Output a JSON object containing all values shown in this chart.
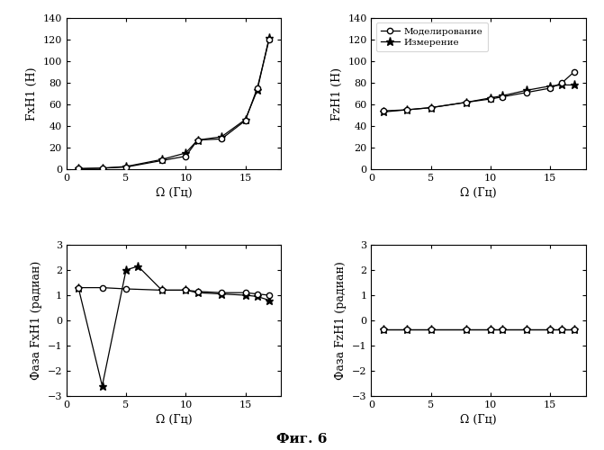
{
  "omega": [
    1,
    3,
    5,
    8,
    10,
    11,
    13,
    15,
    16,
    17
  ],
  "fxh1_sim": [
    0.5,
    1.0,
    2.0,
    8.0,
    12.0,
    27.0,
    28.0,
    45.0,
    75.0,
    120.0
  ],
  "fxh1_meas": [
    0.5,
    1.0,
    2.5,
    9.0,
    15.0,
    27.0,
    30.0,
    46.0,
    73.0,
    122.0
  ],
  "fzh1_omega": [
    1,
    3,
    5,
    8,
    10,
    11,
    13,
    15,
    16,
    17
  ],
  "fzh1_sim": [
    54,
    55,
    57,
    62,
    65,
    67,
    71,
    75,
    80,
    90
  ],
  "fzh1_meas": [
    53,
    55,
    57,
    62,
    66,
    68,
    73,
    77,
    78,
    78
  ],
  "phase_fxh1_omega_sim": [
    1,
    3,
    5,
    8,
    10,
    11,
    13,
    15,
    16,
    17
  ],
  "phase_fxh1_sim": [
    1.3,
    1.3,
    1.25,
    1.2,
    1.2,
    1.15,
    1.1,
    1.1,
    1.05,
    1.0
  ],
  "phase_fxh1_omega_meas": [
    1,
    3,
    5,
    6,
    8,
    10,
    11,
    13,
    15,
    16,
    17
  ],
  "phase_fxh1_meas": [
    1.3,
    -2.6,
    2.0,
    2.15,
    1.2,
    1.2,
    1.1,
    1.05,
    1.0,
    0.95,
    0.8
  ],
  "phase_fzh1_omega": [
    1,
    3,
    5,
    8,
    10,
    11,
    13,
    15,
    16,
    17
  ],
  "phase_fzh1_sim": [
    -0.35,
    -0.35,
    -0.35,
    -0.35,
    -0.35,
    -0.35,
    -0.35,
    -0.35,
    -0.35,
    -0.35
  ],
  "phase_fzh1_meas": [
    -0.35,
    -0.35,
    -0.35,
    -0.35,
    -0.35,
    -0.35,
    -0.35,
    -0.35,
    -0.35,
    -0.35
  ],
  "title_bottom": "Фиг. 6",
  "legend_sim": "Моделирование",
  "legend_meas": "Измерение",
  "xlabel": "Ω (Гц)",
  "ylabel_fxh1": "FxH1 (Н)",
  "ylabel_fzh1": "FzH1 (Н)",
  "ylabel_phase_fxh1": "Фаза FxH1 (радиан)",
  "ylabel_phase_fzh1": "Фаза FzH1 (радиан)",
  "bg_color": "#ffffff",
  "line_color": "#000000"
}
